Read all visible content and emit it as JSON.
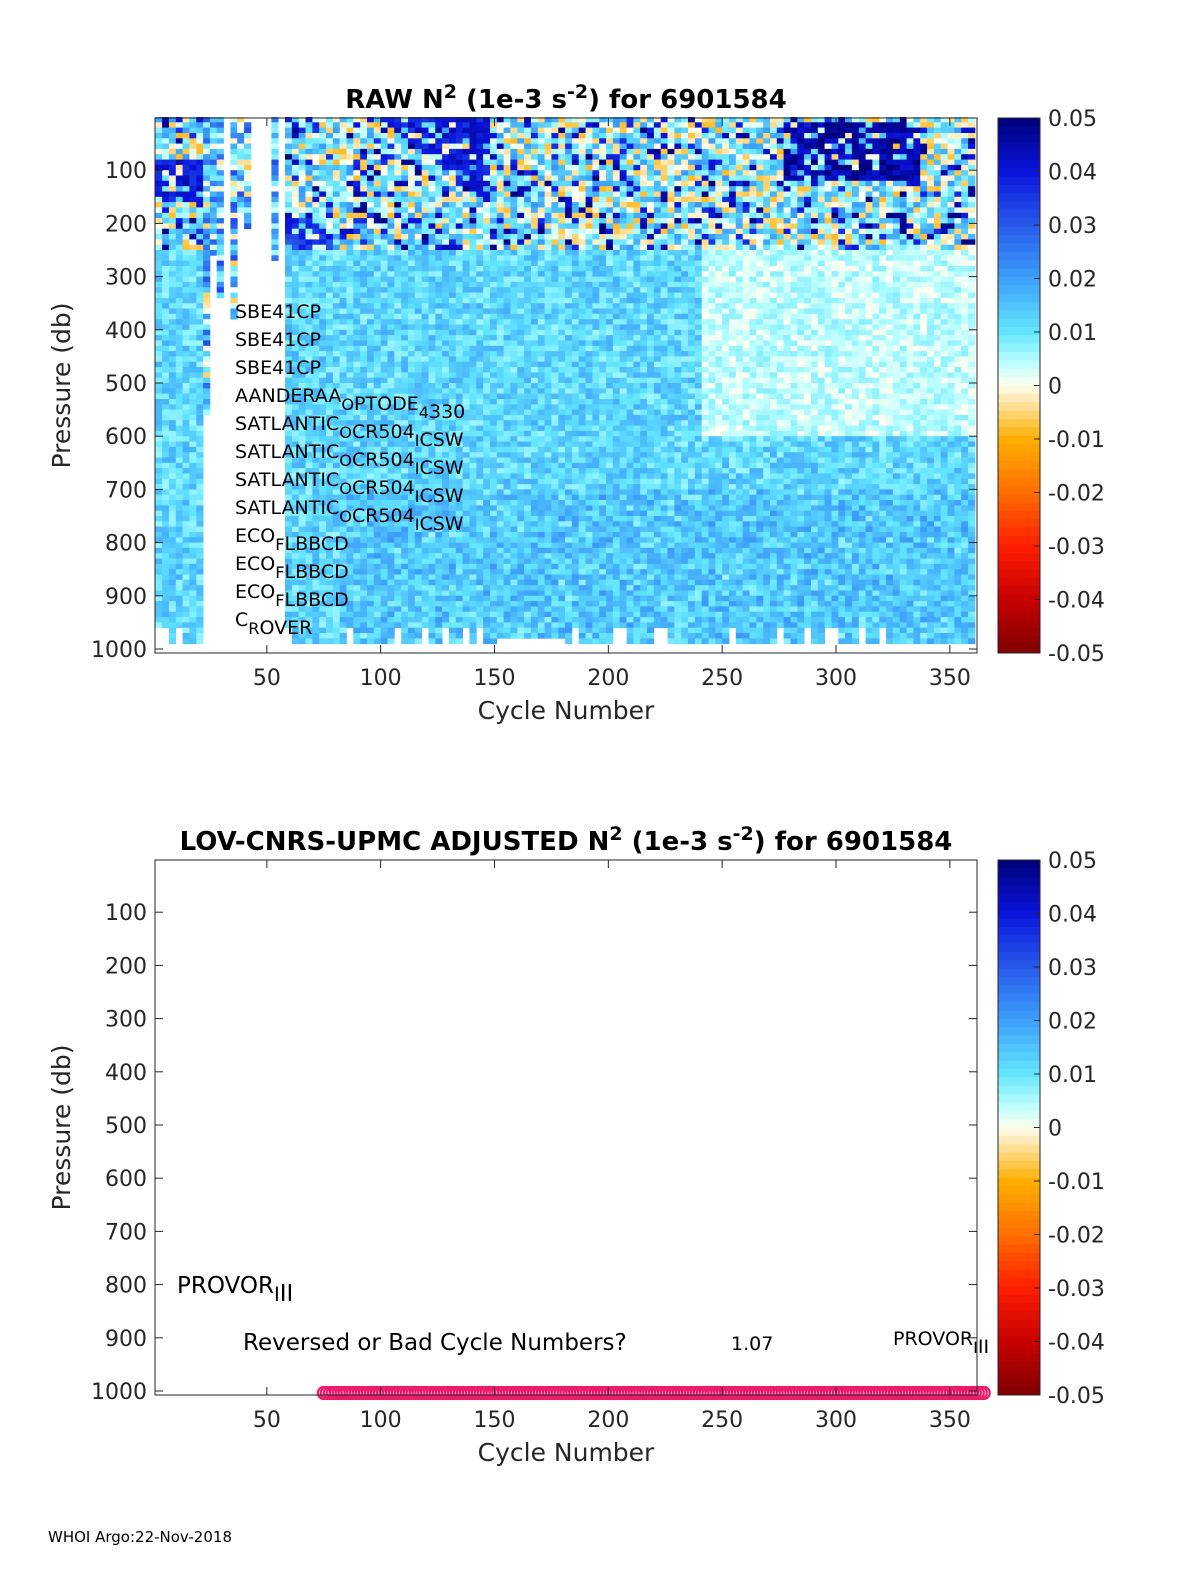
{
  "footer": "WHOI Argo:22-Nov-2018",
  "chart_data": [
    {
      "type": "heatmap",
      "title": {
        "pre": "RAW N",
        "sup1": "2",
        "mid": " (1e-3 s",
        "sup2": "-2",
        "post": ") for 6901584"
      },
      "xlabel": "Cycle Number",
      "ylabel": "Pressure (db)",
      "xlim": [
        1,
        362
      ],
      "ylim": [
        1000,
        0
      ],
      "xticks": [
        50,
        100,
        150,
        200,
        250,
        300,
        350
      ],
      "yticks": [
        100,
        200,
        300,
        400,
        500,
        600,
        700,
        800,
        900,
        1000
      ],
      "colorbar": {
        "range": [
          -0.05,
          0.05
        ],
        "ticks": [
          "0.05",
          "0.04",
          "0.03",
          "0.02",
          "0.01",
          "0",
          "-0.01",
          "-0.02",
          "-0.03",
          "-0.04",
          "-0.05"
        ]
      },
      "field_summary": {
        "mixed_layer_bottom_db": 255,
        "upper_noise_range": [
          -0.012,
          0.05
        ],
        "deep_mean": 0.012,
        "deep_noise": 0.006,
        "missing_cycles": [
          22,
          56
        ],
        "strong_patches": [
          {
            "cycles": [
              1,
              20
            ],
            "pressure": [
              90,
              160
            ],
            "value": 0.045
          },
          {
            "cycles": [
              100,
              145
            ],
            "pressure": [
              0,
              160
            ],
            "value": 0.045
          },
          {
            "cycles": [
              56,
              80
            ],
            "pressure": [
              200,
              290
            ],
            "value": 0.04
          },
          {
            "cycles": [
              275,
              335
            ],
            "pressure": [
              20,
              120
            ],
            "value": 0.05
          }
        ],
        "weak_zone": {
          "cycles": [
            240,
            362
          ],
          "pressure": [
            255,
            600
          ],
          "value": 0.003
        }
      },
      "annotations": [
        "SBE41CP",
        "SBE41CP",
        "SBE41CP",
        "AANDERAA_OPTODE_4330",
        "SATLANTIC_OCR504_ICSW",
        "SATLANTIC_OCR504_ICSW",
        "SATLANTIC_OCR504_ICSW",
        "SATLANTIC_OCR504_ICSW",
        "ECO_FLBBCD",
        "ECO_FLBBCD",
        "ECO_FLBBCD",
        "C_ROVER"
      ]
    },
    {
      "type": "scatter",
      "title": {
        "pre": "LOV-CNRS-UPMC  ADJUSTED N",
        "sup1": "2",
        "mid": " (1e-3 s",
        "sup2": "-2",
        "post": ") for 6901584"
      },
      "xlabel": "Cycle Number",
      "ylabel": "Pressure (db)",
      "xlim": [
        1,
        362
      ],
      "ylim": [
        1000,
        0
      ],
      "xticks": [
        50,
        100,
        150,
        200,
        250,
        300,
        350
      ],
      "yticks": [
        100,
        200,
        300,
        400,
        500,
        600,
        700,
        800,
        900,
        1000
      ],
      "colorbar": {
        "range": [
          -0.05,
          0.05
        ],
        "ticks": [
          "0.05",
          "0.04",
          "0.03",
          "0.02",
          "0.01",
          "0",
          "-0.01",
          "-0.02",
          "-0.03",
          "-0.04",
          "-0.05"
        ]
      },
      "bad_cycle_markers": {
        "cycles_from": 75,
        "cycles_to": 366,
        "pressure": 1000,
        "color": "#ec1c6c"
      },
      "annotations": {
        "platform_left": "PROVOR_III",
        "warning": "Reversed or Bad Cycle Numbers?",
        "value": "1.07",
        "platform_right": "PROVOR_III"
      }
    }
  ]
}
